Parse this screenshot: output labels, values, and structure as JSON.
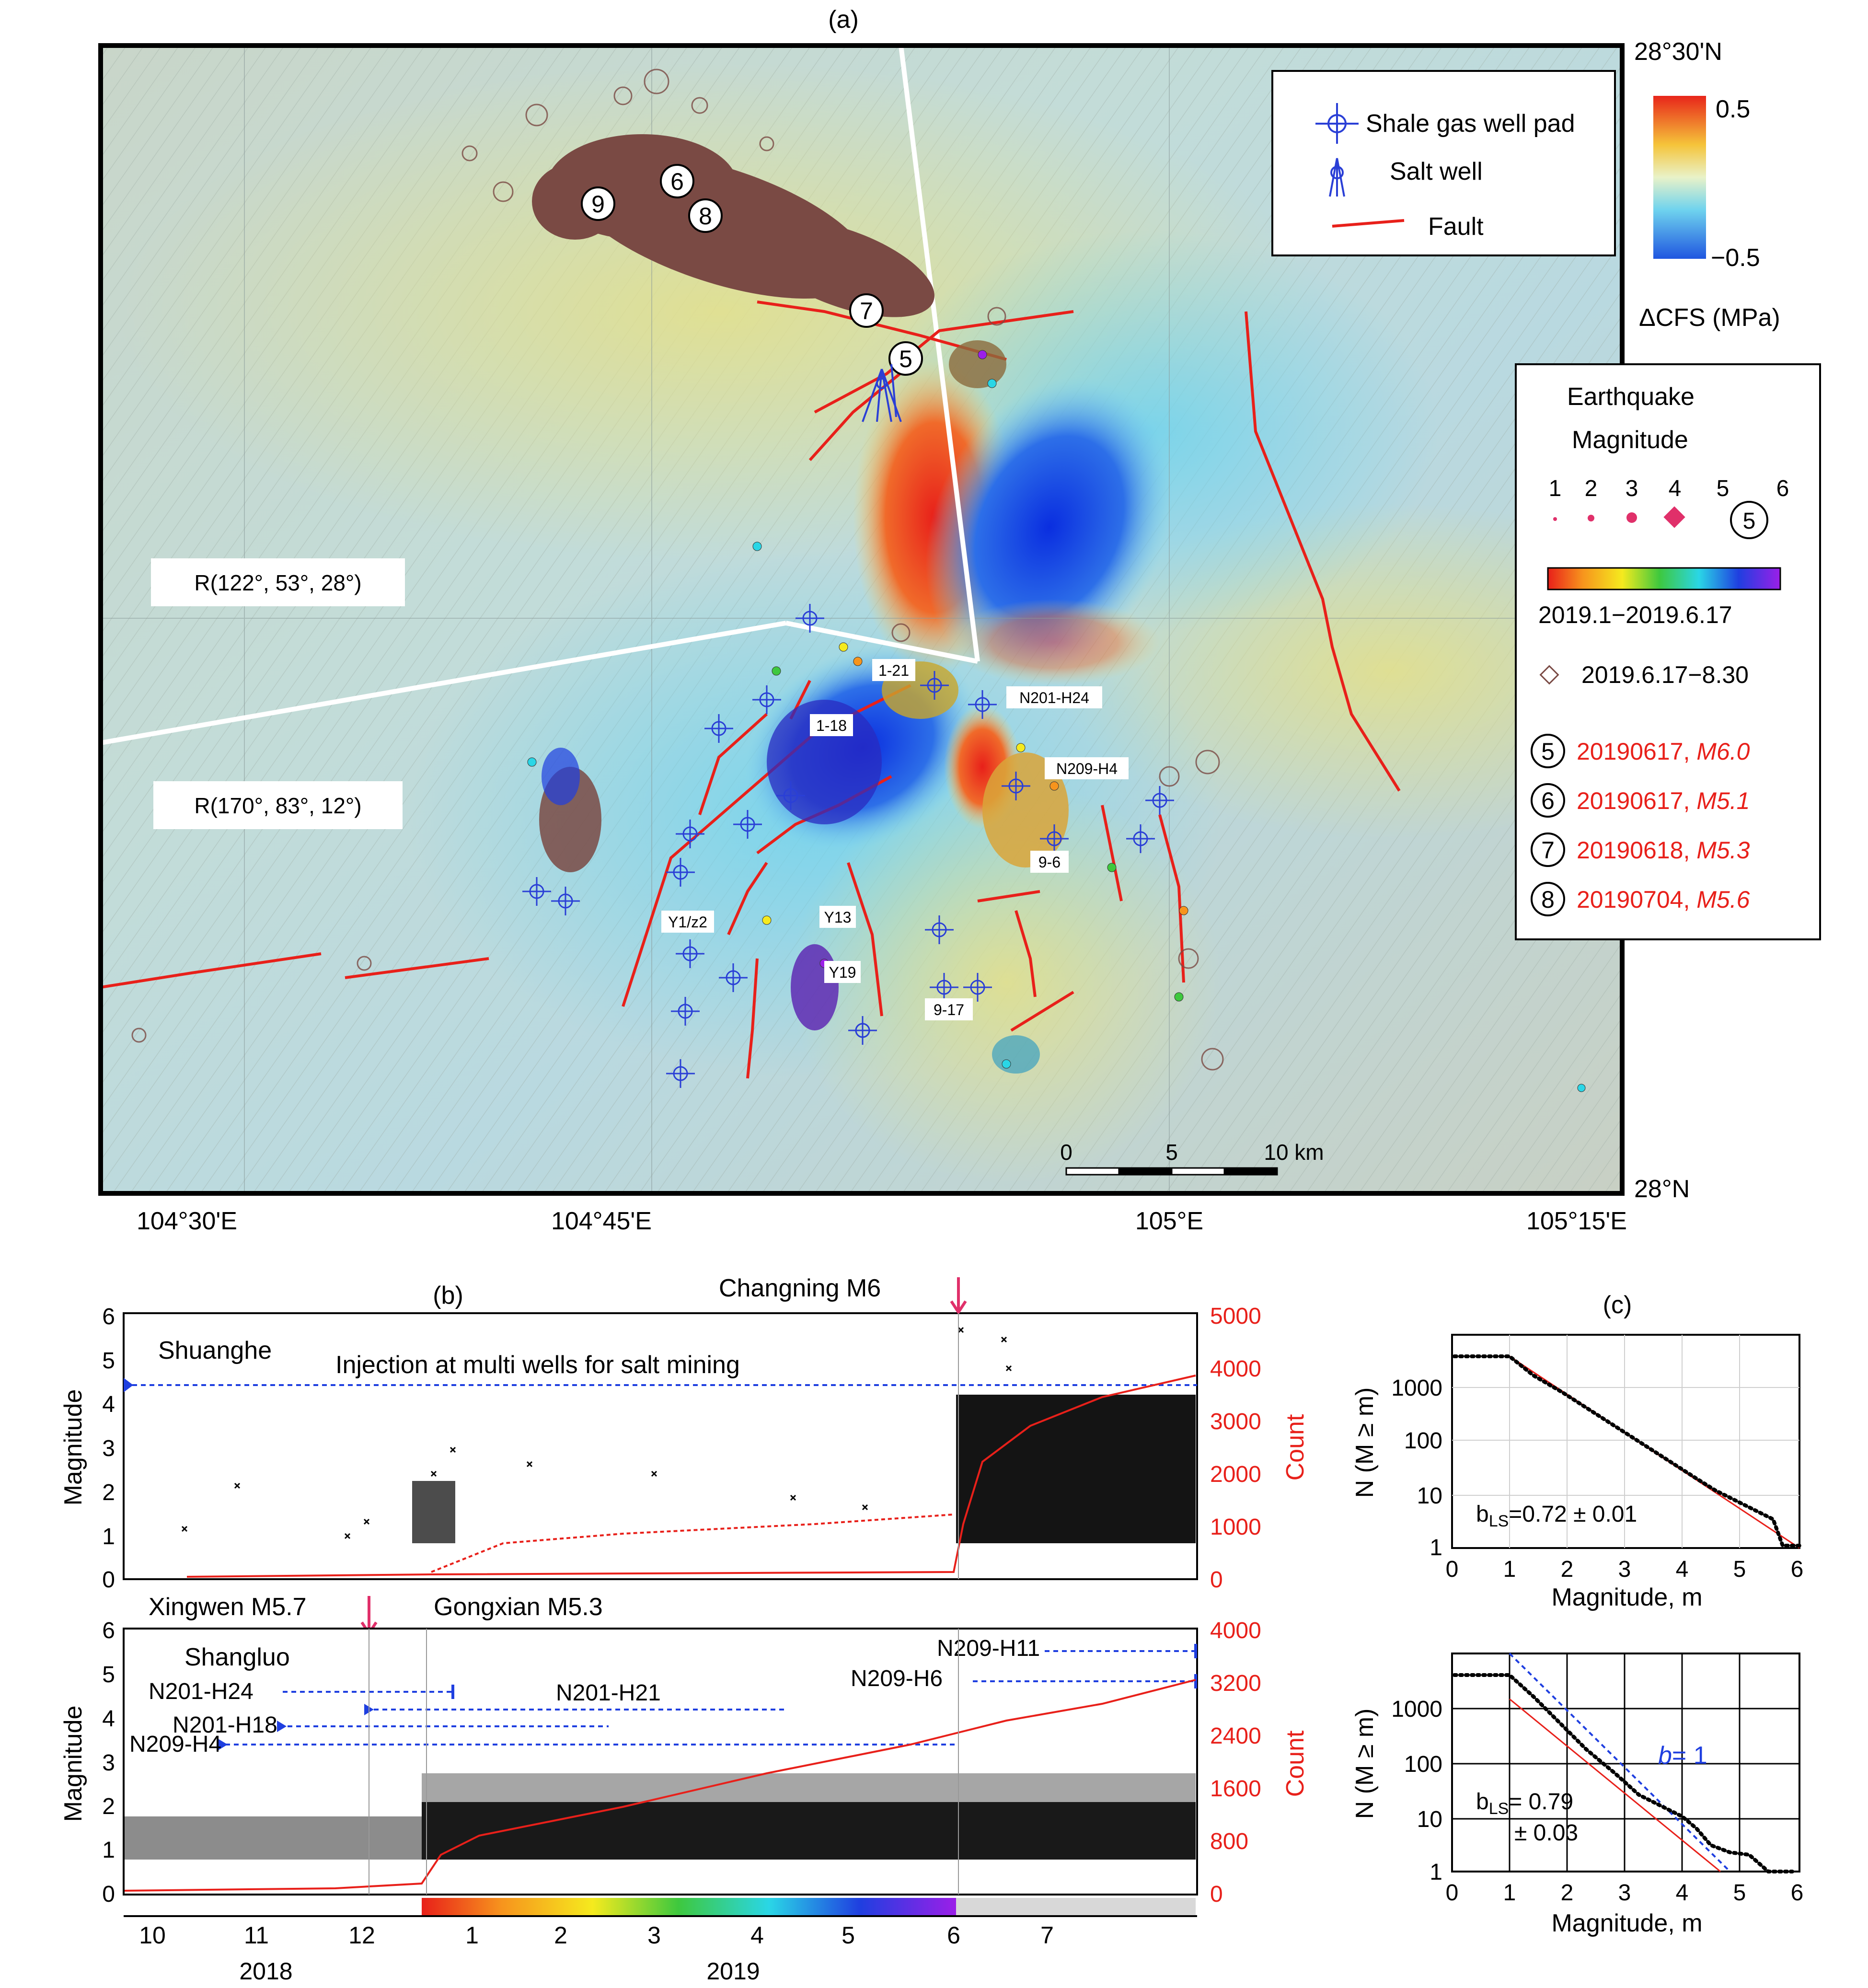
{
  "panel_a": {
    "label": "(a)",
    "lat_top": "28°30'N",
    "lat_bottom": "28°N",
    "lon_labels": [
      "104°30'E",
      "104°45'E",
      "105°E",
      "105°15'E"
    ],
    "legend_top": {
      "well_pad": "Shale gas well pad",
      "salt_well": "Salt well",
      "fault": "Fault",
      "fault_color": "#e8201a",
      "well_color": "#2a3fd6"
    },
    "colorbar": {
      "max": "0.5",
      "min": "−0.5",
      "title": "ΔCFS (MPa)"
    },
    "eq_legend": {
      "title1": "Earthquake",
      "title2": "Magnitude",
      "mags": [
        "1",
        "2",
        "3",
        "4",
        "5",
        "6"
      ],
      "period1": "2019.1−2019.6.17",
      "period2": "2019.6.17−8.30",
      "events": [
        {
          "num": "5",
          "date": "20190617, ",
          "mag": "M6.0"
        },
        {
          "num": "6",
          "date": "20190617, ",
          "mag": "M5.1"
        },
        {
          "num": "7",
          "date": "20190618, ",
          "mag": "M5.3"
        },
        {
          "num": "8",
          "date": "20190704, ",
          "mag": "M5.6"
        }
      ]
    },
    "stress_labels": [
      "R(122°, 53°, 28°)",
      "R(170°, 83°, 12°)"
    ],
    "event_markers": [
      "9",
      "6",
      "8",
      "7",
      "5"
    ],
    "well_labels": [
      "1-21",
      "N201-H24",
      "1-18",
      "N209-H4",
      "9-6",
      "Y1/z2",
      "Y13",
      "Y19",
      "9-17"
    ],
    "scale": {
      "ticks": [
        "0",
        "5",
        "10 km"
      ]
    }
  },
  "panel_b": {
    "label": "(b)",
    "top": {
      "region": "Shuanghe",
      "injection": "Injection at multi wells for salt mining",
      "event": "Changning M6",
      "y_left_label": "Magnitude",
      "y_right_label": "Count",
      "left_ticks": [
        "0",
        "1",
        "2",
        "3",
        "4",
        "5",
        "6"
      ],
      "right_ticks": [
        "0",
        "1000",
        "2000",
        "3000",
        "4000",
        "5000"
      ]
    },
    "bottom": {
      "region": "Shangluo",
      "event1": "Xingwen M5.7",
      "event2": "Gongxian M5.3",
      "wells": [
        "N201-H24",
        "N201-H18",
        "N209-H4",
        "N201-H21",
        "N209-H11",
        "N209-H6"
      ],
      "y_left_label": "Magnitude",
      "y_right_label": "Count",
      "left_ticks": [
        "0",
        "1",
        "2",
        "3",
        "4",
        "5",
        "6"
      ],
      "right_ticks": [
        "0",
        "800",
        "1600",
        "2400",
        "3200",
        "4000"
      ]
    },
    "x_months": [
      "10",
      "11",
      "12",
      "1",
      "2",
      "3",
      "4",
      "5",
      "6",
      "7"
    ],
    "x_years": [
      "2018",
      "2019"
    ]
  },
  "panel_c": {
    "label": "(c)",
    "top": {
      "b_value": "=0.72 ± 0.01",
      "x_ticks": [
        "0",
        "1",
        "2",
        "3",
        "4",
        "5",
        "6"
      ],
      "y_ticks": [
        "1",
        "10",
        "100",
        "1000"
      ]
    },
    "bottom": {
      "b_value": "= 0.79",
      "b_err": "± 0.03",
      "b_ref": "= 1",
      "x_ticks": [
        "0",
        "1",
        "2",
        "3",
        "4",
        "5",
        "6"
      ],
      "y_ticks": [
        "1",
        "10",
        "100",
        "1000"
      ]
    },
    "x_label": "Magnitude, m",
    "y_label": "N (M ≥ m)"
  }
}
